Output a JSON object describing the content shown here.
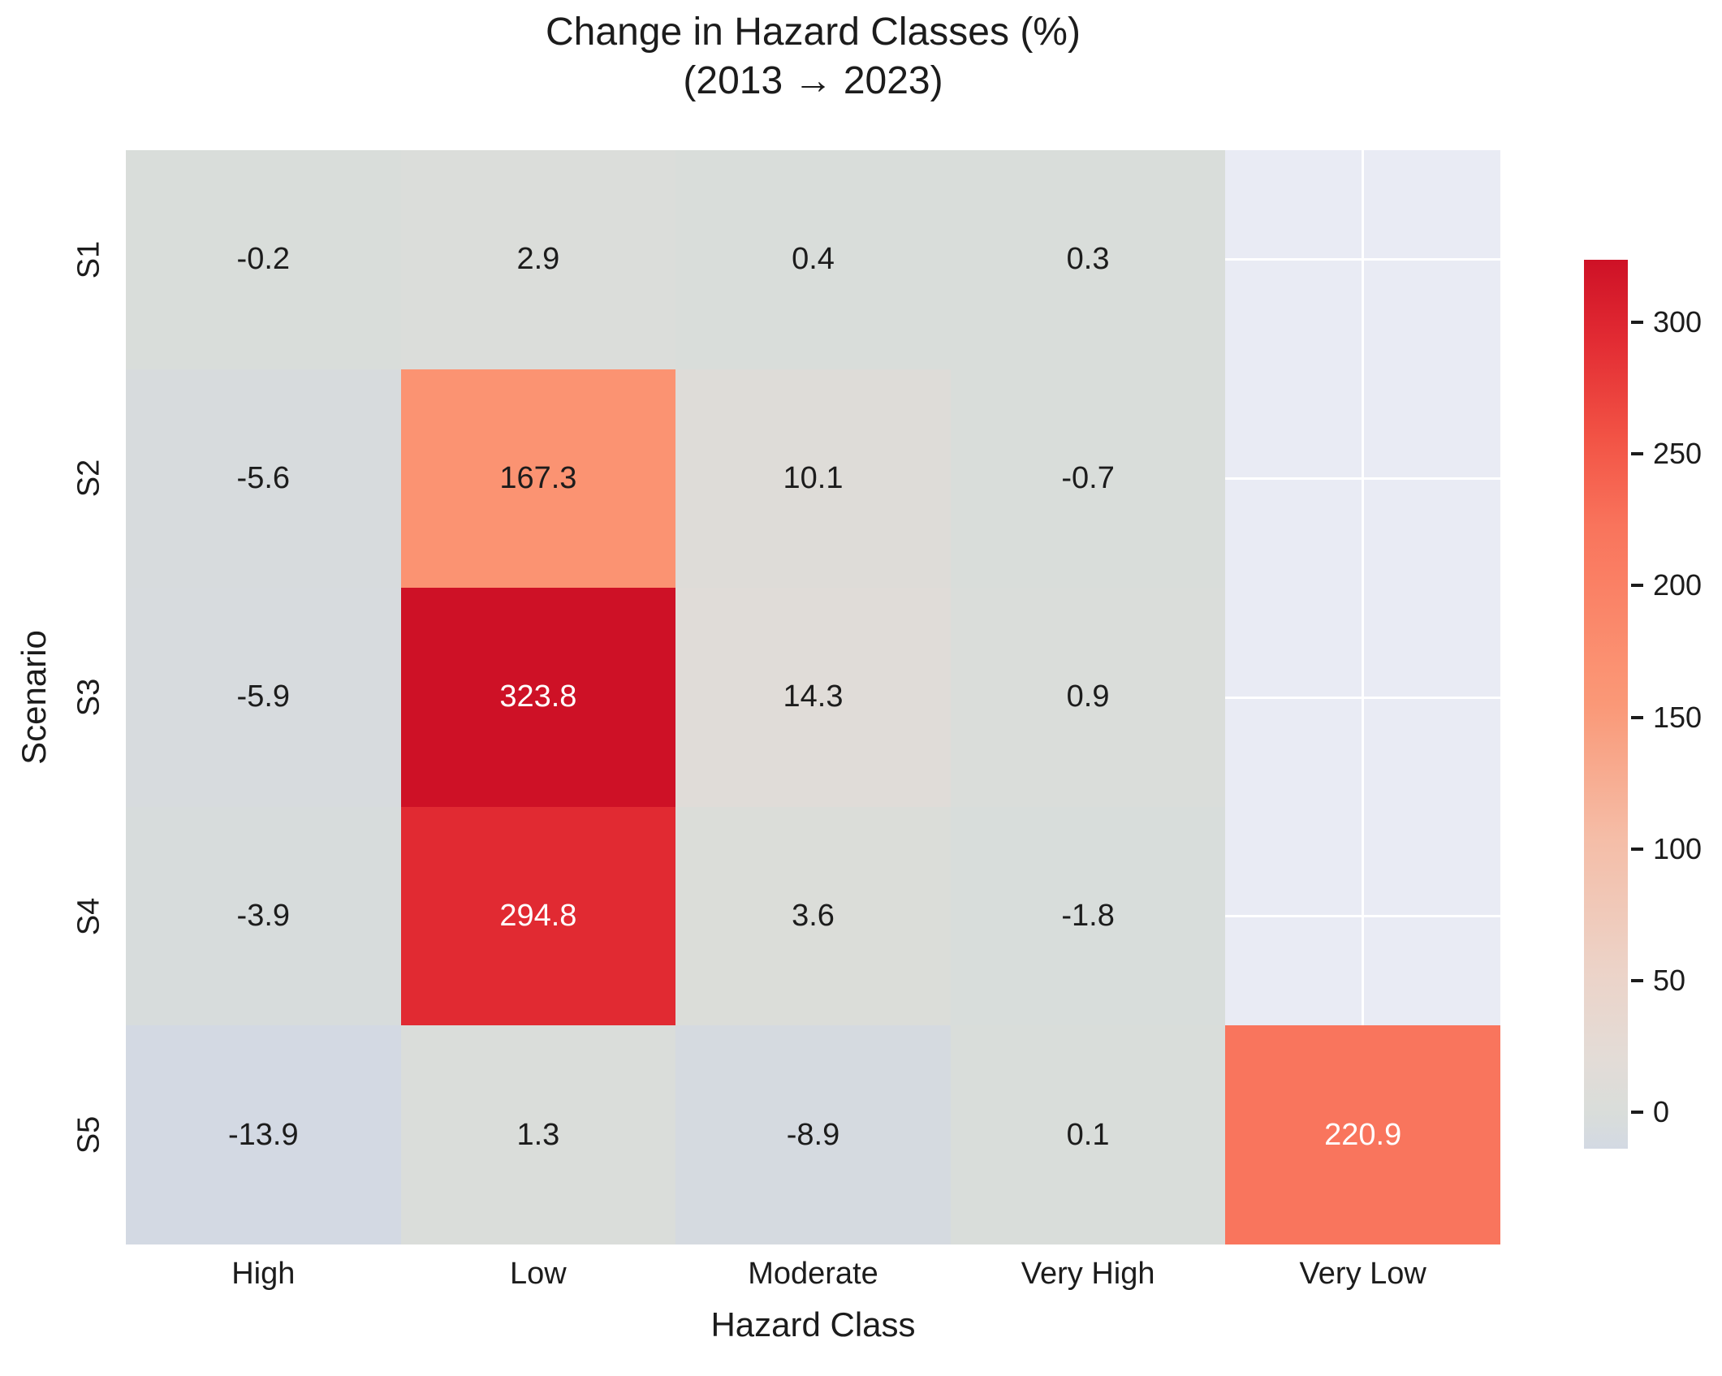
{
  "title": {
    "line1": "Change in Hazard Classes (%)",
    "line2": "(2013 → 2023)"
  },
  "chart_data": {
    "type": "heatmap",
    "title": "Change in Hazard Classes (%) (2013 → 2023)",
    "xlabel": "Hazard Class",
    "ylabel": "Scenario",
    "x_categories": [
      "High",
      "Low",
      "Moderate",
      "Very High",
      "Very Low"
    ],
    "y_categories": [
      "S1",
      "S2",
      "S3",
      "S4",
      "S5"
    ],
    "values": [
      [
        -0.2,
        2.9,
        0.4,
        0.3,
        null
      ],
      [
        -5.6,
        167.3,
        10.1,
        -0.7,
        null
      ],
      [
        -5.9,
        323.8,
        14.3,
        0.9,
        null
      ],
      [
        -3.9,
        294.8,
        3.6,
        -1.8,
        null
      ],
      [
        -13.9,
        1.3,
        -8.9,
        0.1,
        220.9
      ]
    ],
    "value_format_decimals": 1,
    "vmin": -13.9,
    "vmax": 323.8,
    "grid": true,
    "colorbar": {
      "ticks": [
        0,
        50,
        100,
        150,
        200,
        250,
        300
      ],
      "position": "right"
    },
    "colors": {
      "figure_background": "#ffffff",
      "nan_background": "#e9ebf4",
      "gridline": "#ffffff",
      "annotation_dark": "#1c1c1c",
      "annotation_light": "#ffffff",
      "colormap_stops": [
        {
          "t": 0.0,
          "hex": "#d3d9e3"
        },
        {
          "t": 0.04,
          "hex": "#d9ddda"
        },
        {
          "t": 0.1,
          "hex": "#e3dcd7"
        },
        {
          "t": 0.2,
          "hex": "#ecd3c8"
        },
        {
          "t": 0.35,
          "hex": "#f5bda7"
        },
        {
          "t": 0.5,
          "hex": "#fa9877"
        },
        {
          "t": 0.54,
          "hex": "#fb9272"
        },
        {
          "t": 0.7,
          "hex": "#f9745c"
        },
        {
          "t": 0.8,
          "hex": "#f25345"
        },
        {
          "t": 0.91,
          "hex": "#e22b33"
        },
        {
          "t": 1.0,
          "hex": "#ce1126"
        }
      ],
      "light_text_threshold": 0.62
    }
  }
}
